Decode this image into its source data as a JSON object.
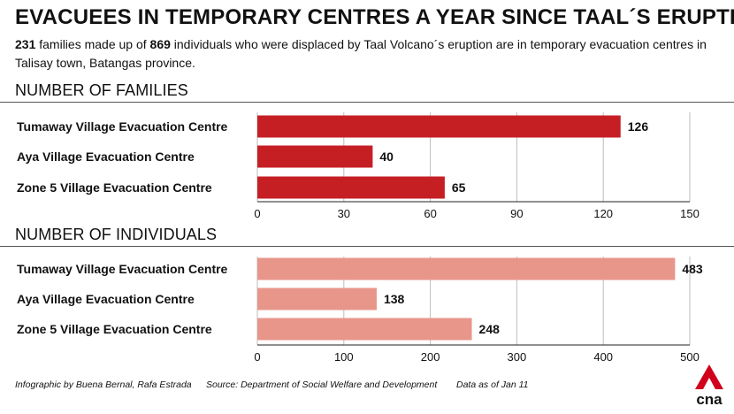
{
  "title": "EVACUEES IN TEMPORARY CENTRES A YEAR SINCE TAAL´S ERUPTION",
  "subtitle": {
    "families": "231",
    "t1": " families made up of ",
    "individuals": "869",
    "t2": " individuals who were displaced by Taal Volcano´s eruption are in temporary evacuation centres in Talisay town, Batangas province."
  },
  "colors": {
    "families_bar": "#c51f24",
    "individuals_bar": "#e8968a",
    "logo": "#d0021b"
  },
  "chart_data": [
    {
      "type": "bar",
      "orientation": "horizontal",
      "title": "NUMBER OF FAMILIES",
      "categories": [
        "Tumaway Village Evacuation Centre",
        "Aya Village Evacuation Centre",
        "Zone 5 Village Evacuation Centre"
      ],
      "values": [
        126,
        40,
        65
      ],
      "xlim": [
        0,
        150
      ],
      "ticks": [
        0,
        30,
        60,
        90,
        120,
        150
      ],
      "grid": true
    },
    {
      "type": "bar",
      "orientation": "horizontal",
      "title": "NUMBER OF INDIVIDUALS",
      "categories": [
        "Tumaway Village Evacuation Centre",
        "Aya Village Evacuation Centre",
        "Zone 5 Village Evacuation Centre"
      ],
      "values": [
        483,
        138,
        248
      ],
      "xlim": [
        0,
        500
      ],
      "ticks": [
        0,
        100,
        200,
        300,
        400,
        500
      ],
      "grid": true
    }
  ],
  "footer": {
    "credit": "Infographic by Buena Bernal, Rafa Estrada",
    "source": "Source: Department of Social Welfare and Development",
    "asof": "Data as of Jan 11"
  },
  "logo": {
    "text": "cna"
  }
}
